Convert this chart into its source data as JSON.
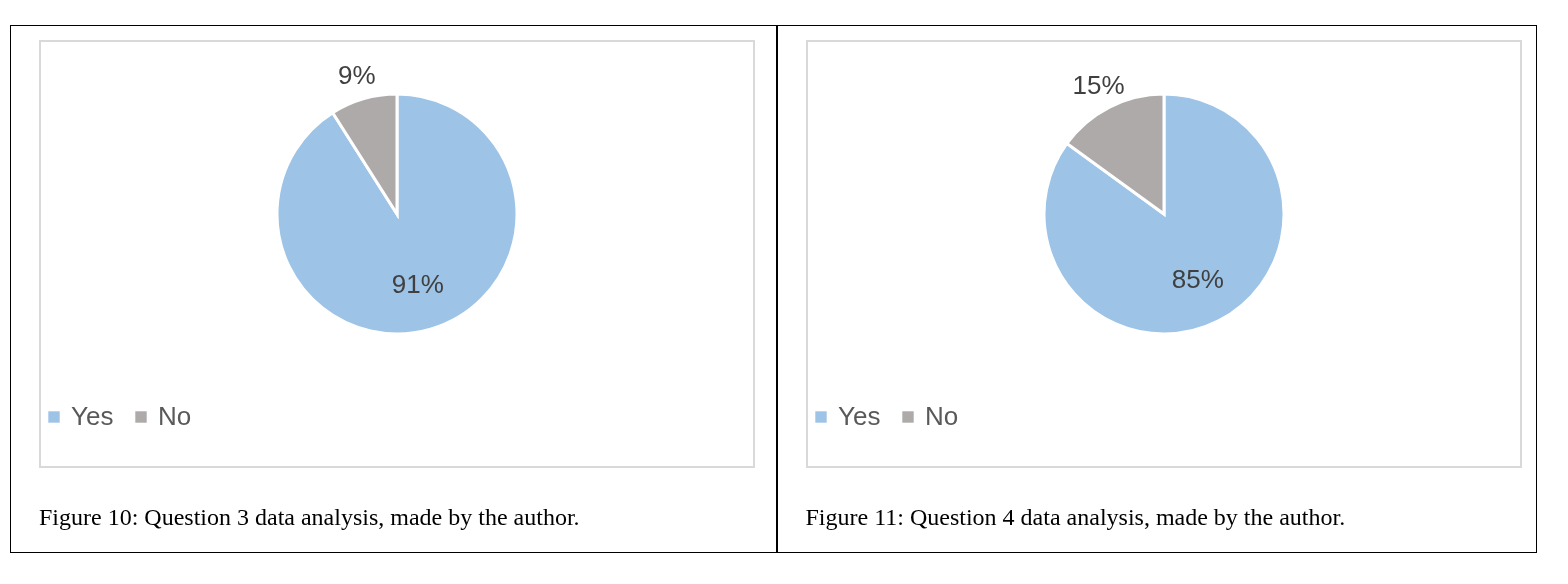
{
  "chart_data": [
    {
      "type": "pie",
      "categories": [
        "Yes",
        "No"
      ],
      "values": [
        91,
        9
      ],
      "colors": [
        "#9dc3e6",
        "#aeaaaa"
      ],
      "value_labels": [
        "91%",
        "9%"
      ],
      "legend": "bottom",
      "annotations": [
        "Figure 10: Question 3 data analysis, made by the author."
      ]
    },
    {
      "type": "pie",
      "categories": [
        "Yes",
        "No"
      ],
      "values": [
        85,
        15
      ],
      "colors": [
        "#9dc3e6",
        "#aeaaaa"
      ],
      "value_labels": [
        "85%",
        "15%"
      ],
      "legend": "bottom",
      "annotations": [
        "Figure 11: Question 4 data analysis, made by the author."
      ]
    }
  ]
}
